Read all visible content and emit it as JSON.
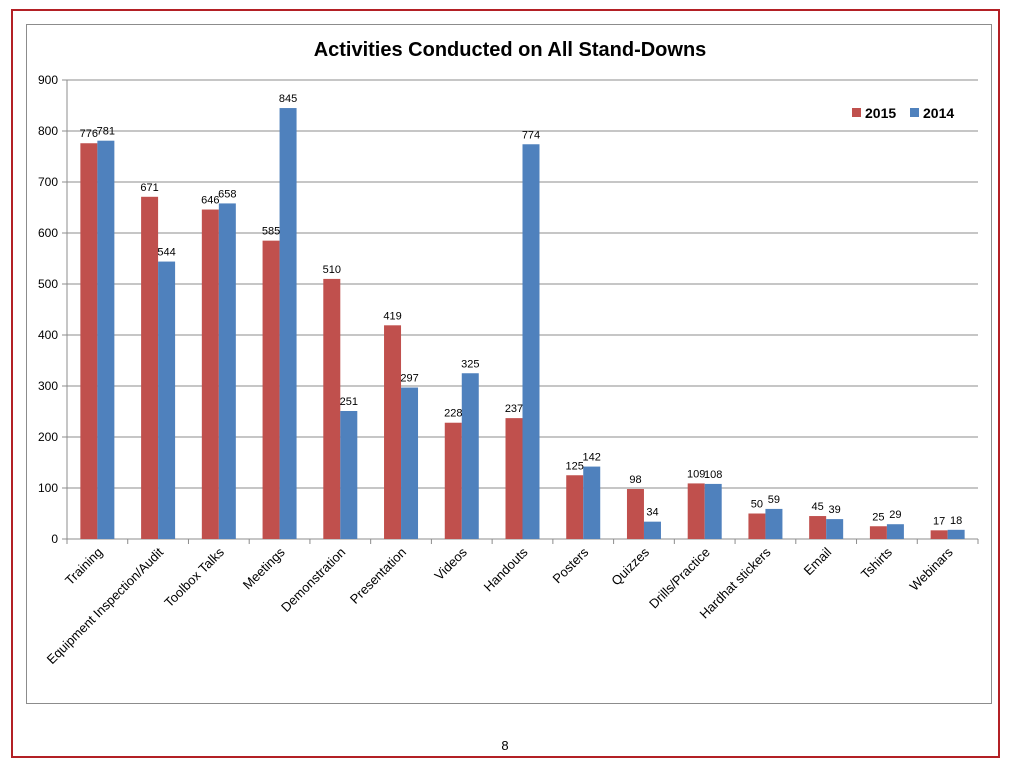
{
  "page": {
    "number": "8"
  },
  "chart_data": {
    "type": "bar",
    "title": "Activities Conducted on All Stand-Downs",
    "xlabel": "",
    "ylabel": "",
    "ylim": [
      0,
      900
    ],
    "yticks": [
      0,
      100,
      200,
      300,
      400,
      500,
      600,
      700,
      800,
      900
    ],
    "grid": true,
    "legend_position": "top-right",
    "categories": [
      "Training",
      "Equipment Inspection/Audit",
      "Toolbox Talks",
      "Meetings",
      "Demonstration",
      "Presentation",
      "Videos",
      "Handouts",
      "Posters",
      "Quizzes",
      "Drills/Practice",
      "Hardhat stickers",
      "Email",
      "Tshirts",
      "Webinars"
    ],
    "series": [
      {
        "name": "2015",
        "color": "#c0504d",
        "values": [
          776,
          671,
          646,
          585,
          510,
          419,
          228,
          237,
          125,
          98,
          109,
          50,
          45,
          25,
          17
        ]
      },
      {
        "name": "2014",
        "color": "#4f81bd",
        "values": [
          781,
          544,
          658,
          845,
          251,
          297,
          325,
          774,
          142,
          34,
          108,
          59,
          39,
          29,
          18
        ]
      }
    ]
  }
}
